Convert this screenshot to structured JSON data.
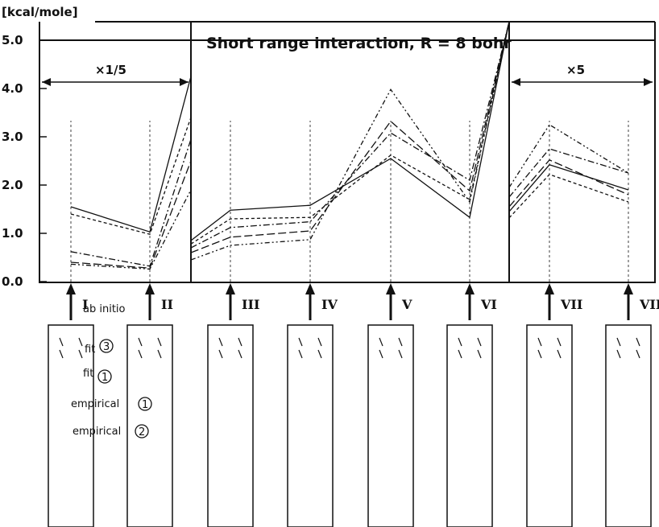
{
  "chart_data": {
    "type": "line",
    "title": "Short range interaction, R = 8 bohr",
    "ylabel": "[kcal/mole]",
    "ylim": [
      0,
      5
    ],
    "yticks": [
      "0.0",
      "1.0",
      "2.0",
      "3.0",
      "4.0",
      "5.0"
    ],
    "categories": [
      "I",
      "II",
      "III",
      "IV",
      "V",
      "VI",
      "VII",
      "VIII"
    ],
    "panels": [
      {
        "label": "×1/5",
        "categories": [
          "I",
          "II"
        ]
      },
      {
        "label": "",
        "categories": [
          "III",
          "IV",
          "V",
          "VI"
        ]
      },
      {
        "label": "×5",
        "categories": [
          "VII",
          "VIII"
        ]
      }
    ],
    "series_labels": {
      "ab_initio": "ab initio",
      "fit3": "fit",
      "fit3_num": "3",
      "fit1": "fit",
      "fit1_num": "1",
      "emp1": "empirical",
      "emp1_num": "1",
      "emp2": "empirical",
      "emp2_num": "2"
    },
    "series": [
      {
        "key": "s1",
        "style": "solid",
        "panel1": [
          1.55,
          1.03,
          4.25
        ],
        "panel2": [
          0.85,
          1.48,
          1.58,
          2.55,
          1.33,
          6.2
        ],
        "panel3": [
          1.45,
          2.42,
          1.9
        ]
      },
      {
        "key": "s2",
        "style": "short-dash",
        "panel1": [
          1.4,
          0.98,
          3.4
        ],
        "panel2": [
          0.78,
          1.3,
          1.33,
          2.62,
          1.7,
          6.0
        ],
        "panel3": [
          1.32,
          2.22,
          1.65
        ]
      },
      {
        "key": "s3",
        "style": "dash-dot",
        "panel1": [
          0.62,
          0.32,
          2.95
        ],
        "panel2": [
          0.7,
          1.12,
          1.24,
          3.08,
          2.1,
          5.9
        ],
        "panel3": [
          1.75,
          2.75,
          2.25
        ]
      },
      {
        "key": "s4",
        "style": "long-dash",
        "panel1": [
          0.4,
          0.28,
          2.5
        ],
        "panel2": [
          0.6,
          0.92,
          1.05,
          3.32,
          1.88,
          6.1
        ],
        "panel3": [
          1.55,
          2.52,
          1.8
        ]
      },
      {
        "key": "s5",
        "style": "dash-dot-dot",
        "panel1": [
          0.36,
          0.26,
          1.9
        ],
        "panel2": [
          0.45,
          0.75,
          0.87,
          3.98,
          1.65,
          6.3
        ],
        "panel3": [
          1.95,
          3.25,
          2.25
        ]
      }
    ]
  }
}
